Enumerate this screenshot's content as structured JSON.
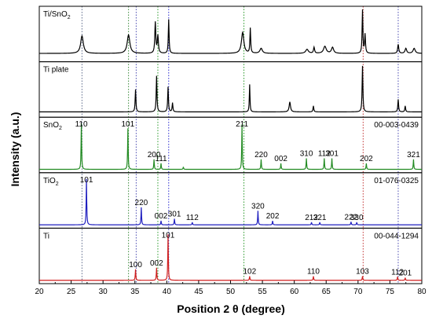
{
  "chart_data": {
    "type": "line",
    "xlabel": "Position 2 θ (degree)",
    "ylabel": "Intensity (a.u.)",
    "xlim": [
      20,
      80
    ],
    "x_ticks": [
      20,
      25,
      30,
      35,
      40,
      45,
      50,
      55,
      60,
      65,
      70,
      75,
      80
    ],
    "x_tick_labels": [
      "20",
      "25",
      "30",
      "35",
      "40",
      "45",
      "50",
      "55",
      "60",
      "65",
      "70",
      "75",
      "80"
    ],
    "reference_lines": [
      {
        "x": 26.7,
        "color": "#5c6a8a"
      },
      {
        "x": 34.0,
        "color": "#3a8a3a"
      },
      {
        "x": 35.2,
        "color": "#4a4ab0"
      },
      {
        "x": 38.6,
        "color": "#2a9a2a"
      },
      {
        "x": 40.3,
        "color": "#2a2ad0"
      },
      {
        "x": 52.1,
        "color": "#2a9a2a"
      },
      {
        "x": 70.8,
        "color": "#c03030"
      },
      {
        "x": 76.3,
        "color": "#4a4ab0"
      }
    ],
    "panels": [
      {
        "name": "Ti/SnO2",
        "label_main": "Ti/SnO",
        "label_sub": "2",
        "color": "#000000",
        "baseline": 0.12,
        "peaks": [
          {
            "x": 26.7,
            "h": 0.35,
            "w": 0.5
          },
          {
            "x": 34.0,
            "h": 0.37,
            "w": 0.5
          },
          {
            "x": 38.2,
            "h": 0.62,
            "w": 0.18
          },
          {
            "x": 38.6,
            "h": 0.35,
            "w": 0.2
          },
          {
            "x": 40.3,
            "h": 0.68,
            "w": 0.14
          },
          {
            "x": 51.9,
            "h": 0.42,
            "w": 0.45
          },
          {
            "x": 53.1,
            "h": 0.5,
            "w": 0.14
          },
          {
            "x": 54.8,
            "h": 0.1,
            "w": 0.45
          },
          {
            "x": 62.0,
            "h": 0.08,
            "w": 0.5
          },
          {
            "x": 63.1,
            "h": 0.12,
            "w": 0.2
          },
          {
            "x": 64.8,
            "h": 0.14,
            "w": 0.5
          },
          {
            "x": 66.0,
            "h": 0.12,
            "w": 0.4
          },
          {
            "x": 70.7,
            "h": 0.88,
            "w": 0.14
          },
          {
            "x": 71.1,
            "h": 0.38,
            "w": 0.16
          },
          {
            "x": 76.3,
            "h": 0.18,
            "w": 0.2
          },
          {
            "x": 77.5,
            "h": 0.1,
            "w": 0.3
          },
          {
            "x": 78.8,
            "h": 0.1,
            "w": 0.4
          }
        ]
      },
      {
        "name": "Ti plate",
        "label_main": "Ti plate",
        "label_sub": "",
        "color": "#000000",
        "baseline": 0.06,
        "peaks": [
          {
            "x": 35.1,
            "h": 0.45,
            "w": 0.14
          },
          {
            "x": 38.4,
            "h": 0.72,
            "w": 0.14
          },
          {
            "x": 40.2,
            "h": 0.5,
            "w": 0.14
          },
          {
            "x": 40.9,
            "h": 0.18,
            "w": 0.14
          },
          {
            "x": 53.0,
            "h": 0.55,
            "w": 0.12
          },
          {
            "x": 59.3,
            "h": 0.2,
            "w": 0.25
          },
          {
            "x": 63.0,
            "h": 0.12,
            "w": 0.14
          },
          {
            "x": 70.7,
            "h": 0.92,
            "w": 0.14
          },
          {
            "x": 76.3,
            "h": 0.25,
            "w": 0.14
          },
          {
            "x": 77.4,
            "h": 0.12,
            "w": 0.14
          }
        ]
      },
      {
        "name": "SnO2",
        "label_main": "SnO",
        "label_sub": "2",
        "pdf": "00-003-0439",
        "color": "#228b22",
        "baseline": 0.02,
        "peaks": [
          {
            "x": 26.6,
            "h": 0.92,
            "w": 0.1,
            "label": "110"
          },
          {
            "x": 33.9,
            "h": 0.82,
            "w": 0.1,
            "label": "101"
          },
          {
            "x": 38.0,
            "h": 0.2,
            "w": 0.1,
            "label": "200"
          },
          {
            "x": 39.1,
            "h": 0.12,
            "w": 0.1,
            "label": "111"
          },
          {
            "x": 42.6,
            "h": 0.05,
            "w": 0.1
          },
          {
            "x": 51.8,
            "h": 0.9,
            "w": 0.1,
            "label": "211"
          },
          {
            "x": 54.8,
            "h": 0.2,
            "w": 0.1,
            "label": "220"
          },
          {
            "x": 57.9,
            "h": 0.12,
            "w": 0.1,
            "label": "002"
          },
          {
            "x": 61.9,
            "h": 0.22,
            "w": 0.1,
            "label": "310"
          },
          {
            "x": 64.7,
            "h": 0.22,
            "w": 0.1,
            "label": "112"
          },
          {
            "x": 65.9,
            "h": 0.22,
            "w": 0.1,
            "label": "301"
          },
          {
            "x": 71.3,
            "h": 0.12,
            "w": 0.1,
            "label": "202"
          },
          {
            "x": 78.7,
            "h": 0.2,
            "w": 0.1,
            "label": "321"
          }
        ]
      },
      {
        "name": "TiO2",
        "label_main": "TiO",
        "label_sub": "2",
        "pdf": "01-076-0325",
        "color": "#1f1fbf",
        "baseline": 0.02,
        "peaks": [
          {
            "x": 27.4,
            "h": 0.92,
            "w": 0.1,
            "label": "101"
          },
          {
            "x": 36.0,
            "h": 0.35,
            "w": 0.1,
            "label": "220"
          },
          {
            "x": 39.1,
            "h": 0.08,
            "w": 0.1,
            "label": "002"
          },
          {
            "x": 41.2,
            "h": 0.12,
            "w": 0.1,
            "label": "301"
          },
          {
            "x": 44.0,
            "h": 0.05,
            "w": 0.1,
            "label": "112"
          },
          {
            "x": 54.3,
            "h": 0.28,
            "w": 0.1,
            "label": "320"
          },
          {
            "x": 56.6,
            "h": 0.08,
            "w": 0.1,
            "label": "202"
          },
          {
            "x": 62.7,
            "h": 0.05,
            "w": 0.1,
            "label": "212"
          },
          {
            "x": 64.0,
            "h": 0.05,
            "w": 0.1,
            "label": "321"
          },
          {
            "x": 68.9,
            "h": 0.06,
            "w": 0.1,
            "label": "222"
          },
          {
            "x": 69.8,
            "h": 0.05,
            "w": 0.1,
            "label": "330"
          }
        ]
      },
      {
        "name": "Ti",
        "label_main": "Ti",
        "label_sub": "",
        "pdf": "00-044-1294",
        "color": "#d01f1f",
        "baseline": 0.02,
        "peaks": [
          {
            "x": 35.1,
            "h": 0.22,
            "w": 0.1,
            "label": "100"
          },
          {
            "x": 38.4,
            "h": 0.25,
            "w": 0.1,
            "label": "002"
          },
          {
            "x": 40.2,
            "h": 0.92,
            "w": 0.1,
            "label": "101"
          },
          {
            "x": 53.0,
            "h": 0.08,
            "w": 0.1,
            "label": "102"
          },
          {
            "x": 63.0,
            "h": 0.08,
            "w": 0.1,
            "label": "110"
          },
          {
            "x": 70.7,
            "h": 0.08,
            "w": 0.1,
            "label": "103"
          },
          {
            "x": 76.2,
            "h": 0.07,
            "w": 0.1,
            "label": "112"
          },
          {
            "x": 77.4,
            "h": 0.05,
            "w": 0.1,
            "label": "201"
          }
        ]
      }
    ]
  }
}
